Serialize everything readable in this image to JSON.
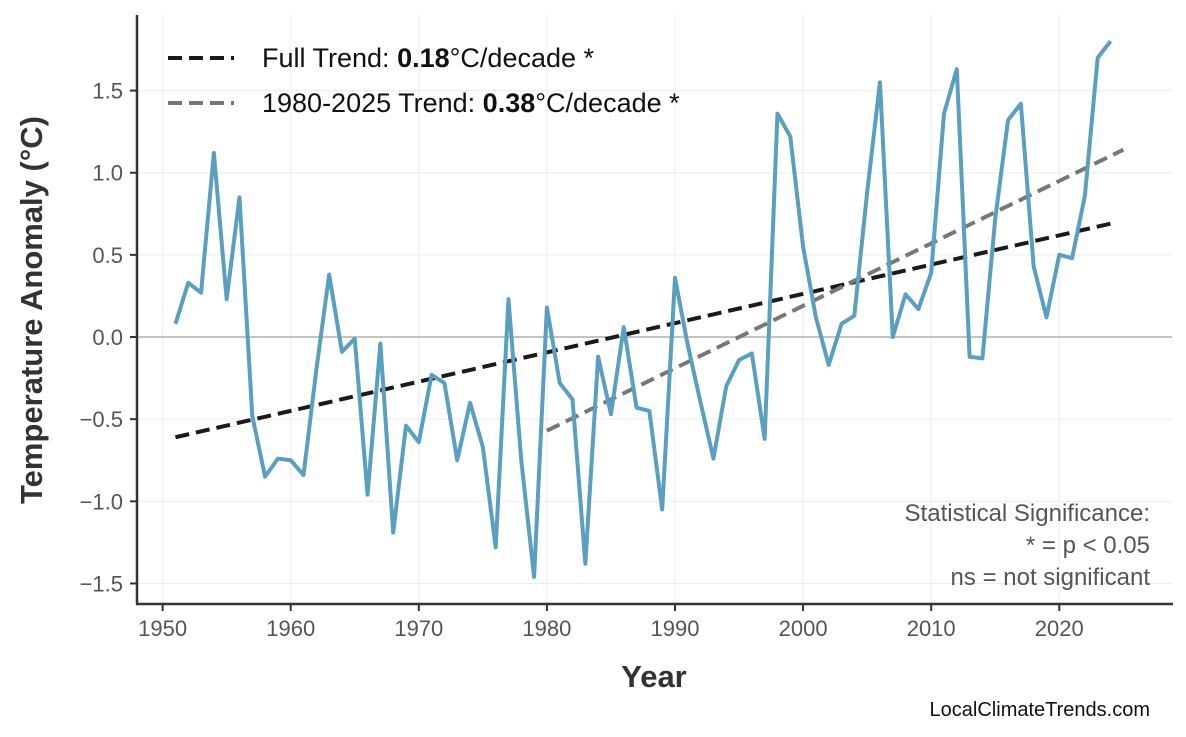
{
  "chart_data": {
    "type": "line",
    "title": "",
    "xlabel": "Year",
    "ylabel": "Temperature Anomaly (°C)",
    "xlim": [
      1948,
      2028.8
    ],
    "ylim": [
      -1.625,
      1.96
    ],
    "x_ticks": [
      1950,
      1960,
      1970,
      1980,
      1990,
      2000,
      2010,
      2020
    ],
    "y_ticks": [
      -1.5,
      -1.0,
      -0.5,
      0.0,
      0.5,
      1.0,
      1.5
    ],
    "y_tick_labels": [
      "−1.5",
      "−1.0",
      "−0.5",
      "0.0",
      "0.5",
      "1.0",
      "1.5"
    ],
    "grid": true,
    "zero_line": true,
    "line_color": "#5a9fc0",
    "x": [
      1951,
      1952,
      1953,
      1954,
      1955,
      1956,
      1957,
      1958,
      1959,
      1960,
      1961,
      1962,
      1963,
      1964,
      1965,
      1966,
      1967,
      1968,
      1969,
      1970,
      1971,
      1972,
      1973,
      1974,
      1975,
      1976,
      1977,
      1978,
      1979,
      1980,
      1981,
      1982,
      1983,
      1984,
      1985,
      1986,
      1987,
      1988,
      1989,
      1990,
      1991,
      1992,
      1993,
      1994,
      1995,
      1996,
      1997,
      1998,
      1999,
      2000,
      2001,
      2002,
      2003,
      2004,
      2005,
      2006,
      2007,
      2008,
      2009,
      2010,
      2011,
      2012,
      2013,
      2014,
      2015,
      2016,
      2017,
      2018,
      2019,
      2020,
      2021,
      2022,
      2023,
      2024
    ],
    "y": [
      0.08,
      0.33,
      0.27,
      1.12,
      0.23,
      0.85,
      -0.48,
      -0.85,
      -0.74,
      -0.75,
      -0.84,
      -0.2,
      0.38,
      -0.09,
      -0.01,
      -0.96,
      -0.04,
      -1.19,
      -0.54,
      -0.64,
      -0.23,
      -0.28,
      -0.75,
      -0.4,
      -0.67,
      -1.28,
      0.23,
      -0.75,
      -1.46,
      0.18,
      -0.28,
      -0.38,
      -1.38,
      -0.12,
      -0.47,
      0.06,
      -0.43,
      -0.45,
      -1.05,
      0.36,
      -0.05,
      -0.4,
      -0.74,
      -0.3,
      -0.14,
      -0.1,
      -0.62,
      1.36,
      1.22,
      0.55,
      0.12,
      -0.17,
      0.08,
      0.13,
      0.88,
      1.55,
      0.0,
      0.26,
      0.17,
      0.39,
      1.36,
      1.63,
      -0.12,
      -0.13,
      0.72,
      1.32,
      1.42,
      0.43,
      0.12,
      0.5,
      0.48,
      0.86,
      1.7,
      1.8
    ],
    "trends": [
      {
        "name": "Full Trend",
        "prefix": "Full Trend: ",
        "value": "0.18",
        "suffix": "°C/decade *",
        "x": [
          1951,
          2024
        ],
        "y": [
          -0.61,
          0.69
        ],
        "color": "#1a1a1a"
      },
      {
        "name": "1980-2025 Trend",
        "prefix": "1980-2025 Trend: ",
        "value": "0.38",
        "suffix": "°C/decade *",
        "x": [
          1980,
          2025
        ],
        "y": [
          -0.57,
          1.14
        ],
        "color": "#777777"
      }
    ],
    "legend_position": "top-left",
    "annotation": [
      "Statistical Significance:",
      "* = p < 0.05",
      "ns = not significant"
    ],
    "credit": "LocalClimateTrends.com"
  }
}
